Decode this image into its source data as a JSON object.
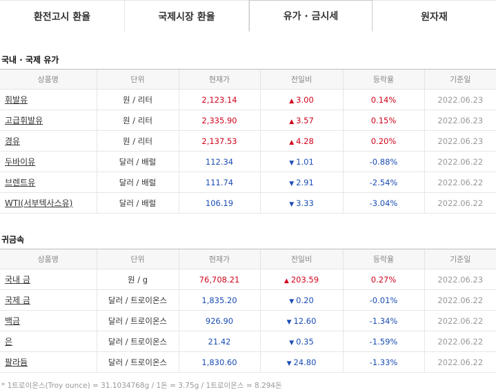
{
  "tabs": [
    {
      "label": "환전고시 환율",
      "active": false
    },
    {
      "label": "국제시장 환율",
      "active": false
    },
    {
      "label": "유가 · 금시세",
      "active": true
    },
    {
      "label": "원자재",
      "active": false
    }
  ],
  "oil": {
    "title": "국내 · 국제 유가",
    "headers": [
      "상품명",
      "단위",
      "현재가",
      "전일비",
      "등락율",
      "기준일"
    ],
    "rows": [
      {
        "name": "휘발유",
        "unit": "원 / 리터",
        "price": "2,123.14",
        "dir": "up",
        "change": "3.00",
        "rate": "0.14%",
        "date": "2022.06.23"
      },
      {
        "name": "고급휘발유",
        "unit": "원 / 리터",
        "price": "2,335.90",
        "dir": "up",
        "change": "3.57",
        "rate": "0.15%",
        "date": "2022.06.23"
      },
      {
        "name": "경유",
        "unit": "원 / 리터",
        "price": "2,137.53",
        "dir": "up",
        "change": "4.28",
        "rate": "0.20%",
        "date": "2022.06.23"
      },
      {
        "name": "두바이유",
        "unit": "달러 / 배럴",
        "price": "112.34",
        "dir": "down",
        "change": "1.01",
        "rate": "-0.88%",
        "date": "2022.06.22"
      },
      {
        "name": "브렌트유",
        "unit": "달러 / 배럴",
        "price": "111.74",
        "dir": "down",
        "change": "2.91",
        "rate": "-2.54%",
        "date": "2022.06.22"
      },
      {
        "name": "WTI(서부텍사스유)",
        "unit": "달러 / 배럴",
        "price": "106.19",
        "dir": "down",
        "change": "3.33",
        "rate": "-3.04%",
        "date": "2022.06.22"
      }
    ]
  },
  "metal": {
    "title": "귀금속",
    "headers": [
      "상품명",
      "단위",
      "현재가",
      "전일비",
      "등락율",
      "기준일"
    ],
    "rows": [
      {
        "name": "국내 금",
        "unit": "원 / g",
        "price": "76,708.21",
        "dir": "up",
        "change": "203.59",
        "rate": "0.27%",
        "date": "2022.06.23"
      },
      {
        "name": "국제 금",
        "unit": "달러 / 트로이온스",
        "price": "1,835.20",
        "dir": "down",
        "change": "0.20",
        "rate": "-0.01%",
        "date": "2022.06.22"
      },
      {
        "name": "백금",
        "unit": "달러 / 트로이온스",
        "price": "926.90",
        "dir": "down",
        "change": "12.60",
        "rate": "-1.34%",
        "date": "2022.06.22"
      },
      {
        "name": "은",
        "unit": "달러 / 트로이온스",
        "price": "21.42",
        "dir": "down",
        "change": "0.35",
        "rate": "-1.59%",
        "date": "2022.06.22"
      },
      {
        "name": "팔라듐",
        "unit": "달러 / 트로이온스",
        "price": "1,830.60",
        "dir": "down",
        "change": "24.80",
        "rate": "-1.33%",
        "date": "2022.06.22"
      }
    ]
  },
  "note": "* 1트로이온스(Troy ounce) = 31.1034768g / 1돈 = 3.75g / 1트로이온스 = 8.294돈",
  "colors": {
    "up": "#d0021b",
    "down": "#1a4db3"
  },
  "icons": {
    "up": "triangle-up-icon",
    "down": "triangle-down-icon"
  }
}
